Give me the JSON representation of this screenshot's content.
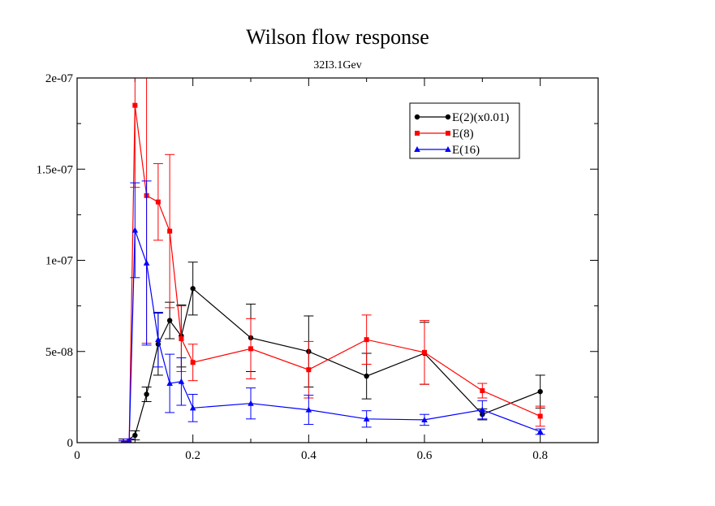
{
  "chart_data": {
    "type": "line",
    "title": "Wilson flow response",
    "subtitle": "32I3.1Gev",
    "xlabel": "",
    "ylabel": "",
    "xlim": [
      0,
      0.9
    ],
    "ylim": [
      0,
      2e-07
    ],
    "x_ticks": [
      {
        "value": 0,
        "label": "0"
      },
      {
        "value": 0.2,
        "label": "0.2"
      },
      {
        "value": 0.4,
        "label": "0.4"
      },
      {
        "value": 0.6,
        "label": "0.6"
      },
      {
        "value": 0.8,
        "label": "0.8"
      }
    ],
    "y_ticks": [
      {
        "value": 0,
        "label": "0"
      },
      {
        "value": 5e-08,
        "label": "5e-08"
      },
      {
        "value": 1e-07,
        "label": "1e-07"
      },
      {
        "value": 1.5e-07,
        "label": "1.5e-07"
      },
      {
        "value": 2e-07,
        "label": "2e-07"
      }
    ],
    "grid": false,
    "legend_position": "top-right",
    "series": [
      {
        "name": "E(2)(x0.01)",
        "color": "#000000",
        "marker": "circle",
        "points": [
          {
            "x": 0.08,
            "y": 0.0,
            "err": 2e-09
          },
          {
            "x": 0.1,
            "y": 4e-09,
            "err": 2.5e-09
          },
          {
            "x": 0.12,
            "y": 2.65e-08,
            "err": 4e-09
          },
          {
            "x": 0.14,
            "y": 5.4e-08,
            "err": 1.7e-08
          },
          {
            "x": 0.16,
            "y": 6.7e-08,
            "err": 1e-08
          },
          {
            "x": 0.18,
            "y": 5.85e-08,
            "err": 1.7e-08
          },
          {
            "x": 0.2,
            "y": 8.45e-08,
            "err": 1.45e-08
          },
          {
            "x": 0.3,
            "y": 5.75e-08,
            "err": 1.85e-08
          },
          {
            "x": 0.4,
            "y": 5e-08,
            "err": 1.95e-08
          },
          {
            "x": 0.5,
            "y": 3.65e-08,
            "err": 1.25e-08
          },
          {
            "x": 0.6,
            "y": 4.9e-08,
            "err": 1.7e-08
          },
          {
            "x": 0.7,
            "y": 1.55e-08,
            "err": 3e-09
          },
          {
            "x": 0.8,
            "y": 2.8e-08,
            "err": 9e-09
          }
        ]
      },
      {
        "name": "E(8)",
        "color": "#ff0000",
        "marker": "square",
        "points": [
          {
            "x": 0.08,
            "y": 0.0,
            "err": 1e-09
          },
          {
            "x": 0.09,
            "y": 1e-09,
            "err": 1e-09
          },
          {
            "x": 0.1,
            "y": 1.85e-07,
            "err": 4.5e-08
          },
          {
            "x": 0.12,
            "y": 1.355e-07,
            "err": 8.1e-08
          },
          {
            "x": 0.14,
            "y": 1.32e-07,
            "err": 2.1e-08
          },
          {
            "x": 0.16,
            "y": 1.16e-07,
            "err": 4.2e-08
          },
          {
            "x": 0.18,
            "y": 5.7e-08,
            "err": 1.8e-08
          },
          {
            "x": 0.2,
            "y": 4.4e-08,
            "err": 1e-08
          },
          {
            "x": 0.3,
            "y": 5.15e-08,
            "err": 1.65e-08
          },
          {
            "x": 0.4,
            "y": 4e-08,
            "err": 1.55e-08
          },
          {
            "x": 0.5,
            "y": 5.65e-08,
            "err": 1.35e-08
          },
          {
            "x": 0.6,
            "y": 4.95e-08,
            "err": 1.75e-08
          },
          {
            "x": 0.7,
            "y": 2.85e-08,
            "err": 4e-09
          },
          {
            "x": 0.8,
            "y": 1.45e-08,
            "err": 5.5e-09
          }
        ]
      },
      {
        "name": "E(16)",
        "color": "#0000ff",
        "marker": "triangle",
        "points": [
          {
            "x": 0.08,
            "y": 0.0,
            "err": 1e-09
          },
          {
            "x": 0.09,
            "y": 1e-09,
            "err": 1e-09
          },
          {
            "x": 0.1,
            "y": 1.165e-07,
            "err": 2.6e-08
          },
          {
            "x": 0.12,
            "y": 9.85e-08,
            "err": 4.5e-08
          },
          {
            "x": 0.14,
            "y": 5.65e-08,
            "err": 1.5e-08
          },
          {
            "x": 0.16,
            "y": 3.25e-08,
            "err": 1.6e-08
          },
          {
            "x": 0.18,
            "y": 3.35e-08,
            "err": 1.3e-08
          },
          {
            "x": 0.2,
            "y": 1.9e-08,
            "err": 7.5e-09
          },
          {
            "x": 0.3,
            "y": 2.15e-08,
            "err": 8.5e-09
          },
          {
            "x": 0.4,
            "y": 1.8e-08,
            "err": 8e-09
          },
          {
            "x": 0.5,
            "y": 1.3e-08,
            "err": 4.5e-09
          },
          {
            "x": 0.6,
            "y": 1.25e-08,
            "err": 3e-09
          },
          {
            "x": 0.7,
            "y": 1.8e-08,
            "err": 5e-09
          },
          {
            "x": 0.8,
            "y": 6e-09,
            "err": 1.5e-09
          }
        ]
      }
    ]
  }
}
